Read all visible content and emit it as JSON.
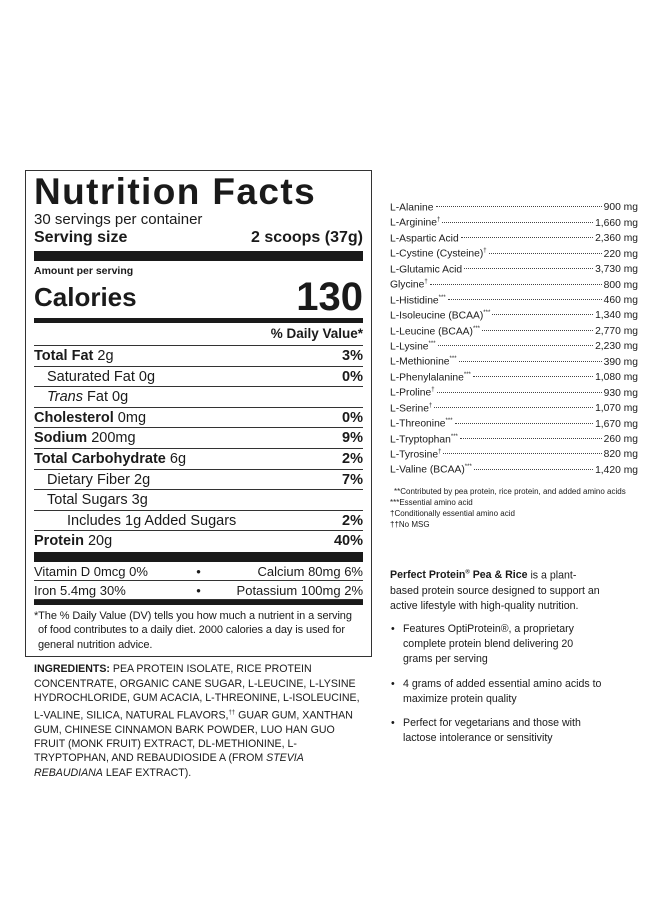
{
  "label": {
    "title": "Nutrition Facts",
    "servings": "30 servings per container",
    "serving_size_label": "Serving size",
    "serving_size_value": "2 scoops (37g)",
    "amount_per_serving": "Amount per serving",
    "calories_label": "Calories",
    "calories_value": "130",
    "dv_header": "% Daily Value*",
    "nutrients": [
      {
        "name": "Total Fat",
        "amount": "2g",
        "dv": "3%",
        "bold": true,
        "indent": 0
      },
      {
        "name": "Saturated Fat",
        "amount": "0g",
        "dv": "0%",
        "bold": false,
        "indent": 1
      },
      {
        "name": "Trans",
        "suffix": "Fat 0g",
        "amount": "",
        "dv": "",
        "bold": false,
        "indent": 1
      },
      {
        "name": "Cholesterol",
        "amount": "0mg",
        "dv": "0%",
        "bold": true,
        "indent": 0
      },
      {
        "name": "Sodium",
        "amount": "200mg",
        "dv": "9%",
        "bold": true,
        "indent": 0
      },
      {
        "name": "Total Carbohydrate",
        "amount": "6g",
        "dv": "2%",
        "bold": true,
        "indent": 0
      },
      {
        "name": "Dietary Fiber",
        "amount": "2g",
        "dv": "7%",
        "bold": false,
        "indent": 1
      },
      {
        "name": "Total Sugars",
        "amount": "3g",
        "dv": "",
        "bold": false,
        "indent": 1
      },
      {
        "name": "Includes 1g Added Sugars",
        "amount": "",
        "dv": "2%",
        "bold": false,
        "indent": 2
      },
      {
        "name": "Protein",
        "amount": "20g",
        "dv": "40%",
        "bold": true,
        "indent": 0
      }
    ],
    "vitamins": [
      {
        "left": "Vitamin D 0mcg 0%",
        "right": "Calcium 80mg 6%"
      },
      {
        "left": "Iron 5.4mg 30%",
        "right": "Potassium 100mg 2%"
      }
    ],
    "footnote": "*The % Daily Value (DV) tells you how much a nutrient in a serving of food contributes to a daily diet. 2000 calories a day is used for general nutrition advice."
  },
  "ingredients": {
    "heading": "INGREDIENTS:",
    "text1": " PEA PROTEIN ISOLATE, RICE PROTEIN CONCENTRATE, ORGANIC CANE SUGAR, L-LEUCINE, L-LYSINE HYDROCHLORIDE, GUM ACACIA, L-THREONINE, L-ISOLEUCINE, L-VALINE, SILICA, NATURAL FLAVORS,",
    "mark": "††",
    "text2": " GUAR GUM, XANTHAN GUM, CHINESE CINNAMON BARK POWDER, LUO HAN GUO FRUIT (MONK FRUIT) EXTRACT, DL-METHIONINE, L-TRYPTOPHAN, AND REBAUDIOSIDE A (FROM ",
    "italic": "STEVIA REBAUDIANA",
    "text3": " LEAF EXTRACT)."
  },
  "amino_acids": [
    {
      "name": "L-Alanine",
      "mark": "",
      "value": "900 mg"
    },
    {
      "name": "L-Arginine",
      "mark": "†",
      "value": "1,660 mg"
    },
    {
      "name": "L-Aspartic Acid",
      "mark": "",
      "value": "2,360 mg"
    },
    {
      "name": "L-Cystine (Cysteine)",
      "mark": "†",
      "value": "220 mg"
    },
    {
      "name": "L-Glutamic Acid",
      "mark": "",
      "value": "3,730 mg"
    },
    {
      "name": "Glycine",
      "mark": "†",
      "value": "800 mg"
    },
    {
      "name": "L-Histidine",
      "mark": "***",
      "value": "460 mg"
    },
    {
      "name": "L-Isoleucine (BCAA)",
      "mark": "***",
      "value": "1,340 mg"
    },
    {
      "name": "L-Leucine (BCAA)",
      "mark": "***",
      "value": "2,770 mg"
    },
    {
      "name": "L-Lysine",
      "mark": "***",
      "value": "2,230 mg"
    },
    {
      "name": "L-Methionine",
      "mark": "***",
      "value": "390 mg"
    },
    {
      "name": "L-Phenylalanine",
      "mark": "***",
      "value": "1,080 mg"
    },
    {
      "name": "L-Proline",
      "mark": "†",
      "value": "930 mg"
    },
    {
      "name": "L-Serine",
      "mark": "†",
      "value": "1,070 mg"
    },
    {
      "name": "L-Threonine",
      "mark": "***",
      "value": "1,670 mg"
    },
    {
      "name": "L-Tryptophan",
      "mark": "***",
      "value": "260 mg"
    },
    {
      "name": "L-Tyrosine",
      "mark": "†",
      "value": "820 mg"
    },
    {
      "name": "L-Valine (BCAA)",
      "mark": "***",
      "value": "1,420 mg"
    }
  ],
  "amino_notes": [
    "**Contributed by pea protein, rice protein, and added amino acids",
    "***Essential amino acid",
    "†Conditionally essential amino acid",
    "††No MSG"
  ],
  "description": {
    "brand": "Perfect Protein",
    "reg": "®",
    "brand_rest": " Pea & Rice",
    "text": " is a plant-based protein source designed to support an active lifestyle with high-quality nutrition.",
    "bullets": [
      "Features OptiProtein®, a proprietary complete protein blend delivering 20 grams per serving",
      "4 grams of added essential amino acids to maximize protein quality",
      "Perfect for vegetarians and those with lactose intolerance or sensitivity"
    ]
  }
}
